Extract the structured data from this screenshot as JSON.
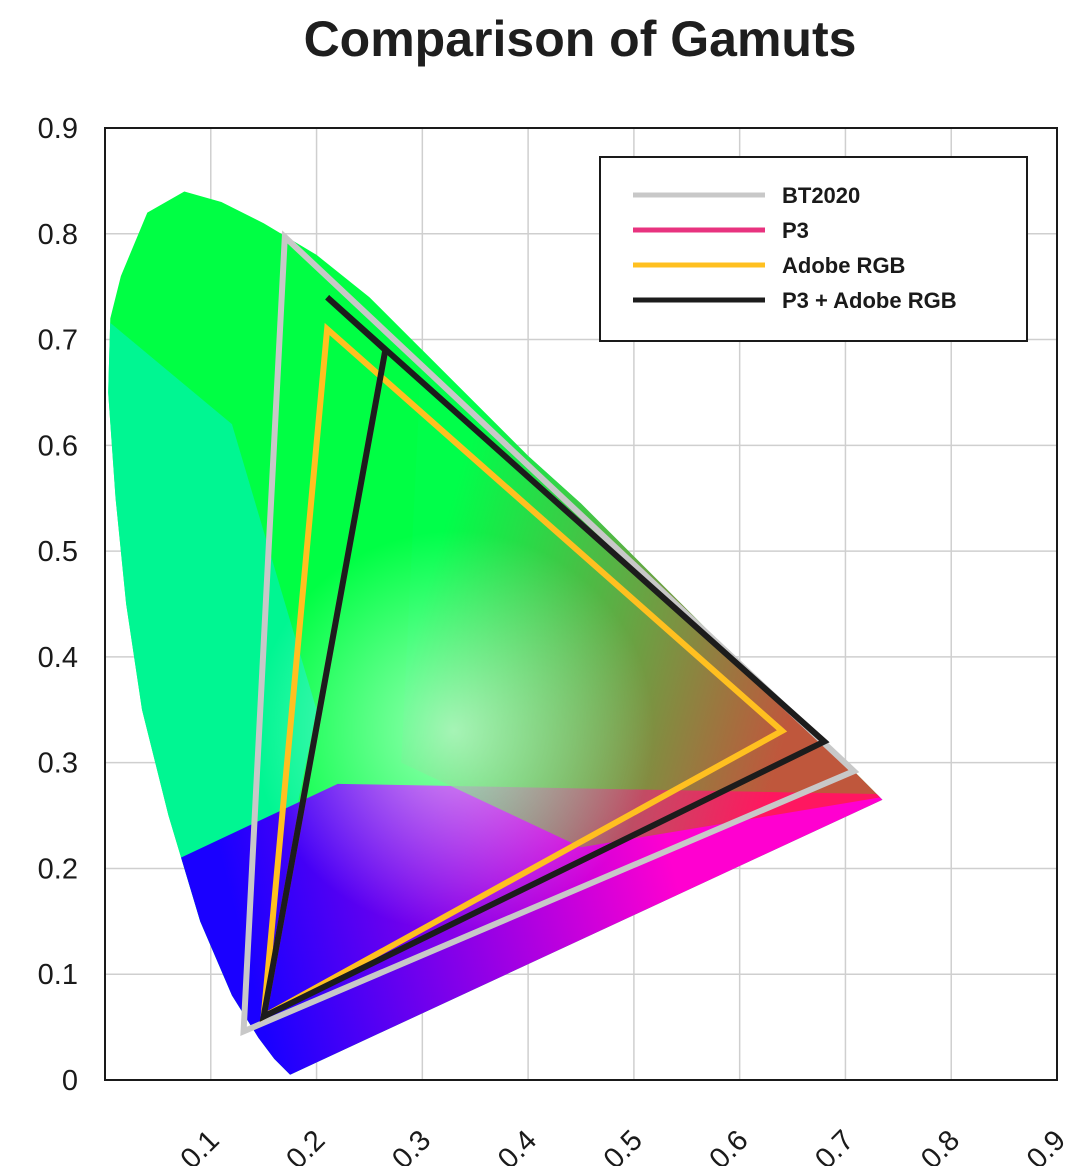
{
  "chart_data": {
    "type": "line",
    "title": "Comparison of Gamuts",
    "xlabel": "",
    "ylabel": "",
    "xlim": [
      0,
      0.9
    ],
    "ylim": [
      0,
      0.9
    ],
    "x_ticks": [
      "0.1",
      "0.2",
      "0.3",
      "0.4",
      "0.5",
      "0.6",
      "0.7",
      "0.8",
      "0.9"
    ],
    "y_ticks": [
      "0",
      "0.1",
      "0.2",
      "0.3",
      "0.4",
      "0.5",
      "0.6",
      "0.7",
      "0.8",
      "0.9"
    ],
    "grid": true,
    "legend_position": "top-right",
    "spectral_locus": [
      [
        0.175,
        0.005
      ],
      [
        0.16,
        0.02
      ],
      [
        0.145,
        0.04
      ],
      [
        0.12,
        0.08
      ],
      [
        0.09,
        0.15
      ],
      [
        0.06,
        0.25
      ],
      [
        0.035,
        0.35
      ],
      [
        0.02,
        0.45
      ],
      [
        0.01,
        0.55
      ],
      [
        0.003,
        0.65
      ],
      [
        0.005,
        0.72
      ],
      [
        0.015,
        0.76
      ],
      [
        0.04,
        0.82
      ],
      [
        0.075,
        0.84
      ],
      [
        0.11,
        0.83
      ],
      [
        0.15,
        0.81
      ],
      [
        0.2,
        0.78
      ],
      [
        0.25,
        0.74
      ],
      [
        0.3,
        0.69
      ],
      [
        0.35,
        0.64
      ],
      [
        0.4,
        0.59
      ],
      [
        0.45,
        0.545
      ],
      [
        0.5,
        0.495
      ],
      [
        0.55,
        0.445
      ],
      [
        0.6,
        0.395
      ],
      [
        0.65,
        0.345
      ],
      [
        0.7,
        0.3
      ],
      [
        0.735,
        0.265
      ]
    ],
    "series": [
      {
        "name": "BT2020",
        "color": "#c8c8c8",
        "points": [
          [
            0.708,
            0.292
          ],
          [
            0.17,
            0.797
          ],
          [
            0.131,
            0.046
          ]
        ]
      },
      {
        "name": "P3",
        "color": "#e8337f",
        "points": [
          [
            0.265,
            0.69
          ],
          [
            0.15,
            0.06
          ]
        ]
      },
      {
        "name": "Adobe RGB",
        "color": "#ffc020",
        "points": [
          [
            0.64,
            0.33
          ],
          [
            0.21,
            0.71
          ],
          [
            0.15,
            0.06
          ]
        ]
      },
      {
        "name": "P3 + Adobe RGB",
        "color": "#1c1c1c",
        "points": [
          [
            0.68,
            0.32
          ],
          [
            0.21,
            0.74
          ],
          [
            0.265,
            0.69
          ],
          [
            0.15,
            0.06
          ]
        ]
      }
    ]
  }
}
